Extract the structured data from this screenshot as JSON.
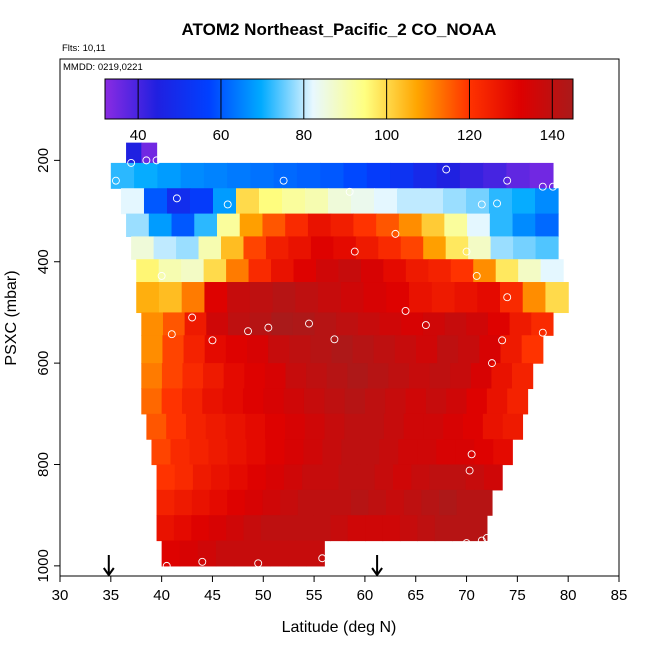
{
  "chart_data": {
    "type": "heatmap",
    "title": "ATOM2 Northeast_Pacific_2 CO_NOAA",
    "flights_label": "Flts: 10,11",
    "mmdd_label": "MMDD: 0219,0221",
    "xlabel": "Latitude (deg N)",
    "ylabel": "PSXC (mbar)",
    "xlim": [
      30,
      85
    ],
    "ylim": [
      1020,
      0
    ],
    "x_ticks": [
      30,
      35,
      40,
      45,
      50,
      55,
      60,
      65,
      70,
      75,
      80,
      85
    ],
    "y_ticks": [
      200,
      400,
      600,
      800,
      1000
    ],
    "colorbar": {
      "range": [
        32,
        145
      ],
      "ticks": [
        40,
        60,
        80,
        100,
        120,
        140
      ],
      "colors": [
        "#8a2be2",
        "#2020e0",
        "#0040ff",
        "#00aaff",
        "#e8f8ff",
        "#ffff80",
        "#ffa500",
        "#ff3300",
        "#dd0000",
        "#aa1a1a"
      ]
    },
    "flight_markers_lat": [
      34.8,
      61.2
    ],
    "layers": [
      {
        "p_top": 165,
        "p_bot": 205,
        "lat_min": 36.5,
        "lat_max": 39.5,
        "values": [
          45,
          35
        ]
      },
      {
        "p_top": 205,
        "p_bot": 255,
        "lat_min": 35.0,
        "lat_max": 78.5,
        "values": [
          72,
          70,
          68,
          66,
          65,
          64,
          63,
          62,
          61,
          60,
          58,
          55,
          52,
          48,
          45,
          42,
          40,
          37,
          35
        ]
      },
      {
        "p_top": 255,
        "p_bot": 305,
        "lat_min": 36.0,
        "lat_max": 79.0,
        "values": [
          82,
          60,
          50,
          55,
          68,
          100,
          95,
          92,
          90,
          86,
          84,
          82,
          80,
          80,
          78,
          76,
          72,
          70,
          66
        ]
      },
      {
        "p_top": 305,
        "p_bot": 350,
        "lat_min": 36.5,
        "lat_max": 79.0,
        "values": [
          78,
          68,
          60,
          72,
          92,
          108,
          116,
          122,
          128,
          125,
          120,
          116,
          110,
          102,
          92,
          82,
          72,
          66,
          62
        ]
      },
      {
        "p_top": 350,
        "p_bot": 395,
        "lat_min": 37.0,
        "lat_max": 79.0,
        "values": [
          86,
          80,
          78,
          90,
          104,
          118,
          125,
          128,
          132,
          130,
          126,
          122,
          118,
          108,
          98,
          88,
          78,
          76,
          74
        ]
      },
      {
        "p_top": 395,
        "p_bot": 440,
        "lat_min": 37.5,
        "lat_max": 79.5,
        "values": [
          96,
          90,
          88,
          100,
          112,
          122,
          128,
          132,
          136,
          138,
          134,
          130,
          126,
          124,
          120,
          110,
          98,
          88,
          82
        ]
      },
      {
        "p_top": 440,
        "p_bot": 500,
        "lat_min": 37.5,
        "lat_max": 80.0,
        "values": [
          106,
          104,
          112,
          132,
          138,
          140,
          142,
          140,
          138,
          136,
          134,
          132,
          128,
          126,
          128,
          130,
          122,
          110,
          100
        ]
      },
      {
        "p_top": 500,
        "p_bot": 545,
        "lat_min": 38.0,
        "lat_max": 78.5,
        "values": [
          110,
          116,
          126,
          136,
          140,
          142,
          146,
          144,
          142,
          140,
          138,
          136,
          134,
          136,
          138,
          136,
          132,
          126,
          122
        ]
      },
      {
        "p_top": 545,
        "p_bot": 600,
        "lat_min": 38.0,
        "lat_max": 77.5,
        "values": [
          110,
          118,
          124,
          130,
          132,
          134,
          138,
          140,
          142,
          144,
          142,
          140,
          138,
          136,
          140,
          138,
          134,
          126,
          120
        ]
      },
      {
        "p_top": 600,
        "p_bot": 650,
        "lat_min": 38.0,
        "lat_max": 76.5,
        "values": [
          112,
          118,
          122,
          126,
          130,
          132,
          134,
          138,
          140,
          142,
          144,
          142,
          140,
          138,
          140,
          138,
          134,
          128,
          124
        ]
      },
      {
        "p_top": 650,
        "p_bot": 700,
        "lat_min": 38.0,
        "lat_max": 76.0,
        "values": [
          114,
          120,
          124,
          128,
          130,
          132,
          134,
          136,
          138,
          140,
          142,
          140,
          138,
          136,
          138,
          136,
          132,
          128,
          124
        ]
      },
      {
        "p_top": 700,
        "p_bot": 750,
        "lat_min": 38.5,
        "lat_max": 75.5,
        "values": [
          116,
          120,
          124,
          126,
          128,
          130,
          132,
          134,
          136,
          138,
          140,
          140,
          138,
          136,
          136,
          134,
          132,
          128,
          126
        ]
      },
      {
        "p_top": 750,
        "p_bot": 800,
        "lat_min": 39.0,
        "lat_max": 74.5,
        "values": [
          118,
          122,
          124,
          126,
          128,
          130,
          132,
          134,
          136,
          138,
          140,
          140,
          138,
          136,
          136,
          134,
          134,
          132,
          130
        ]
      },
      {
        "p_top": 800,
        "p_bot": 850,
        "lat_min": 39.5,
        "lat_max": 73.5,
        "values": [
          120,
          122,
          126,
          128,
          130,
          132,
          134,
          136,
          138,
          138,
          140,
          140,
          138,
          136,
          138,
          140,
          140,
          138,
          136
        ]
      },
      {
        "p_top": 850,
        "p_bot": 900,
        "lat_min": 39.5,
        "lat_max": 72.5,
        "values": [
          124,
          126,
          128,
          130,
          132,
          134,
          136,
          138,
          140,
          140,
          140,
          142,
          140,
          138,
          140,
          142,
          144,
          142,
          142
        ]
      },
      {
        "p_top": 900,
        "p_bot": 950,
        "lat_min": 39.5,
        "lat_max": 72.0,
        "values": [
          128,
          130,
          132,
          134,
          136,
          138,
          140,
          140,
          140,
          140,
          138,
          136,
          136,
          136,
          138,
          140,
          142,
          142,
          142
        ]
      },
      {
        "p_top": 950,
        "p_bot": 1000,
        "lat_min": 40.0,
        "lat_max": 56.0,
        "values": [
          132,
          134,
          136,
          138,
          138,
          138,
          138,
          138,
          138
        ]
      }
    ],
    "sample_points": [
      [
        37,
        205
      ],
      [
        38.5,
        200
      ],
      [
        39.5,
        200
      ],
      [
        35.5,
        240
      ],
      [
        52,
        240
      ],
      [
        58.5,
        262
      ],
      [
        68,
        218
      ],
      [
        74,
        240
      ],
      [
        77.5,
        252
      ],
      [
        78.5,
        252
      ],
      [
        41.5,
        275
      ],
      [
        46.5,
        287
      ],
      [
        71.5,
        287
      ],
      [
        73,
        285
      ],
      [
        63,
        345
      ],
      [
        59,
        380
      ],
      [
        70,
        380
      ],
      [
        40,
        428
      ],
      [
        71,
        428
      ],
      [
        74,
        470
      ],
      [
        64,
        497
      ],
      [
        43,
        510
      ],
      [
        41,
        543
      ],
      [
        45,
        555
      ],
      [
        48.5,
        537
      ],
      [
        50.5,
        530
      ],
      [
        54.5,
        522
      ],
      [
        57,
        553
      ],
      [
        66,
        525
      ],
      [
        73.5,
        555
      ],
      [
        77.5,
        540
      ],
      [
        72.5,
        600
      ],
      [
        70.5,
        780
      ],
      [
        70.3,
        812
      ],
      [
        70,
        955
      ],
      [
        71.5,
        950
      ],
      [
        72,
        945
      ],
      [
        40.5,
        1000
      ],
      [
        44,
        992
      ],
      [
        49.5,
        995
      ],
      [
        55.8,
        985
      ]
    ]
  }
}
